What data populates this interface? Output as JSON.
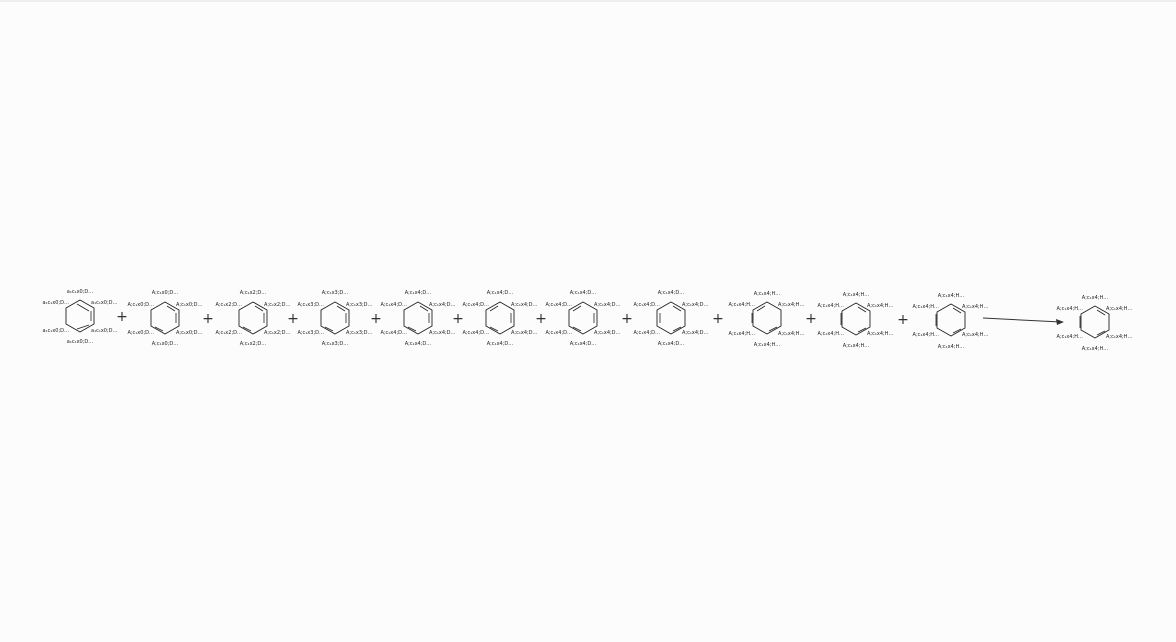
{
  "plus_sign": "+",
  "molecules": [
    {
      "id": "m1",
      "labels": [
        "a₁c₁x0;D…",
        "a₁c₁x0;D…",
        "a₁c₁x0;D…",
        "a₁c₁x0;D…",
        "a₁c₁x0;D…",
        "a₁c₁x0;D…"
      ]
    },
    {
      "id": "m2",
      "labels": [
        "A;c₁x0;D…",
        "A;c₁x0;D…",
        "A;c₁x0;D…",
        "A;c₁x0;D…",
        "A;c₁x0;D…",
        "A;c₁x0;D…"
      ]
    },
    {
      "id": "m3",
      "labels": [
        "A;c₁x2;D…",
        "A;c₁x2;D…",
        "A;c₁x2;D…",
        "A;c₁x2;D…",
        "A;c₁x2;D…",
        "A;c₁x2;D…"
      ]
    },
    {
      "id": "m4",
      "labels": [
        "A;c₁x3;D…",
        "A;c₁x3;D…",
        "A;c₁x3;D…",
        "A;c₁x3;D…",
        "A;c₁x3;D…",
        "A;c₁x3;D…"
      ]
    },
    {
      "id": "m5",
      "labels": [
        "A;c₁x4;D…",
        "A;c₁x4;D…",
        "A;c₁x4;D…",
        "A;c₁x4;D…",
        "A;c₁x4;D…",
        "A;c₁x4;D…"
      ]
    },
    {
      "id": "m6",
      "labels": [
        "A;c₁x4;D…",
        "A;c₁x4;D…",
        "A;c₁x4;D…",
        "A;c₁x4;D…",
        "A;c₁x4;D…",
        "A;c₁x4;D…"
      ]
    },
    {
      "id": "m7",
      "labels": [
        "A;c₁x4;D…",
        "A;c₁x4;D…",
        "A;c₁x4;D…",
        "A;c₁x4;D…",
        "A;c₁x4;D…",
        "A;c₁x4;D…"
      ]
    },
    {
      "id": "m8",
      "labels": [
        "A;c₁x4;D…",
        "A;c₁x4;D…",
        "A;c₁x4;D…",
        "A;c₁x4;D…",
        "A;c₁x4;D…",
        "A;c₁x4;D…"
      ]
    },
    {
      "id": "m9",
      "labels": [
        "A;c₁x4;H…",
        "A;c₁x4;H…",
        "A;c₁x4;H…",
        "A;c₁x4;H…",
        "A;c₁x4;H…",
        "A;c₁x4;H…"
      ]
    },
    {
      "id": "m10",
      "labels": [
        "A;c₁x4;H…",
        "A;c₁x4;H…",
        "A;c₁x4;H…",
        "A;c₁x4;H…",
        "A;c₁x4;H…",
        "A;c₁x4;H…"
      ]
    },
    {
      "id": "m11",
      "labels": [
        "A;c₁x4;H…",
        "A;c₁x4;H…",
        "A;c₁x4;H…",
        "A;c₁x4;H…",
        "A;c₁x4;H…",
        "A;c₁x4;H…"
      ]
    },
    {
      "id": "m12",
      "labels": [
        "A;c₁x4;H…",
        "A;c₁x4;H…",
        "A;c₁x4;H…",
        "A;c₁x4;H…",
        "A;c₁x4;H…",
        "A;c₁x4;H…"
      ]
    }
  ]
}
